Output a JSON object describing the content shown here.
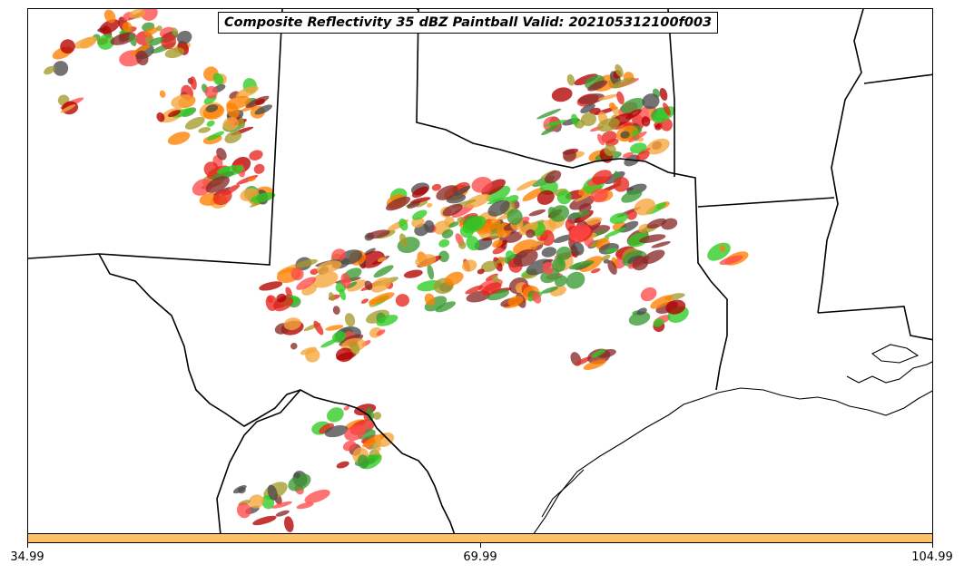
{
  "title": "Composite Reflectivity 35 dBZ Paintball Valid: 202105312100f003",
  "colorbar": {
    "color": "#ffc164",
    "tick_labels": [
      "34.99",
      "69.99",
      "104.99"
    ]
  },
  "legend_colors": {
    "member_colors": [
      "#ff8000",
      "#e8271d",
      "#b30000",
      "#8b2a2a",
      "#2ecc22",
      "#3a9a32",
      "#a59b2c",
      "#f5a53b",
      "#ff4a4a",
      "#4b4b4b"
    ]
  },
  "map": {
    "projection": "lambert-conformal",
    "region": "Southern Plains / Texas",
    "borders": [
      "state-lines",
      "international-border",
      "coastline"
    ]
  }
}
